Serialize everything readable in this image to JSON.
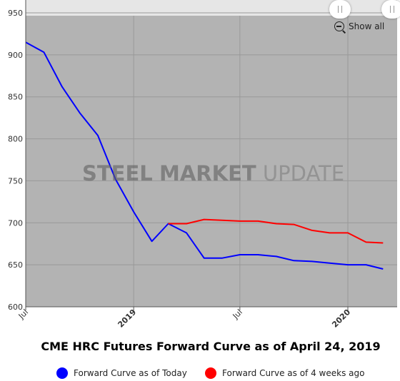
{
  "chart_data": {
    "type": "line",
    "title": "CME HRC Futures Forward Curve as of April 24, 2019",
    "xlabel": "",
    "ylabel": "",
    "ylim": [
      600,
      950
    ],
    "yticks": [
      600,
      650,
      700,
      750,
      800,
      850,
      900,
      950
    ],
    "xticks": [
      {
        "date": "2018-07-01",
        "label": "Jul",
        "bold": false
      },
      {
        "date": "2019-01-01",
        "label": "2019",
        "bold": true
      },
      {
        "date": "2019-07-01",
        "label": "Jul",
        "bold": false
      },
      {
        "date": "2020-01-01",
        "label": "2020",
        "bold": true
      }
    ],
    "xrange": [
      "2018-07-01",
      "2020-04-01"
    ],
    "grid": true,
    "legend_position": "bottom",
    "series": [
      {
        "name": "Forward Curve as of Today",
        "color": "#0000ff",
        "points": [
          [
            "2018-07-01",
            915
          ],
          [
            "2018-08-01",
            903
          ],
          [
            "2018-09-01",
            862
          ],
          [
            "2018-10-01",
            831
          ],
          [
            "2018-11-01",
            804
          ],
          [
            "2018-12-01",
            752
          ],
          [
            "2019-01-01",
            713
          ],
          [
            "2019-02-01",
            678
          ],
          [
            "2019-03-01",
            699
          ],
          [
            "2019-04-01",
            688
          ],
          [
            "2019-05-01",
            658
          ],
          [
            "2019-06-01",
            658
          ],
          [
            "2019-07-01",
            662
          ],
          [
            "2019-08-01",
            662
          ],
          [
            "2019-09-01",
            660
          ],
          [
            "2019-10-01",
            655
          ],
          [
            "2019-11-01",
            654
          ],
          [
            "2019-12-01",
            652
          ],
          [
            "2020-01-01",
            650
          ],
          [
            "2020-02-01",
            650
          ],
          [
            "2020-03-01",
            645
          ]
        ]
      },
      {
        "name": "Forward Curve as of 4 weeks ago",
        "color": "#ff0000",
        "points": [
          [
            "2019-03-01",
            699
          ],
          [
            "2019-04-01",
            699
          ],
          [
            "2019-05-01",
            704
          ],
          [
            "2019-06-01",
            703
          ],
          [
            "2019-07-01",
            702
          ],
          [
            "2019-08-01",
            702
          ],
          [
            "2019-09-01",
            699
          ],
          [
            "2019-10-01",
            698
          ],
          [
            "2019-11-01",
            691
          ],
          [
            "2019-12-01",
            688
          ],
          [
            "2020-01-01",
            688
          ],
          [
            "2020-02-01",
            677
          ],
          [
            "2020-03-01",
            676
          ]
        ]
      }
    ]
  },
  "watermark": {
    "word1": "STEEL",
    "word2": "MARKET",
    "word3": "UPDATE"
  },
  "controls": {
    "show_all_label": "Show all"
  },
  "colors": {
    "plot_background": "#b3b3b3",
    "navigator_band": "#e6e6e6",
    "grid": "#999999"
  }
}
